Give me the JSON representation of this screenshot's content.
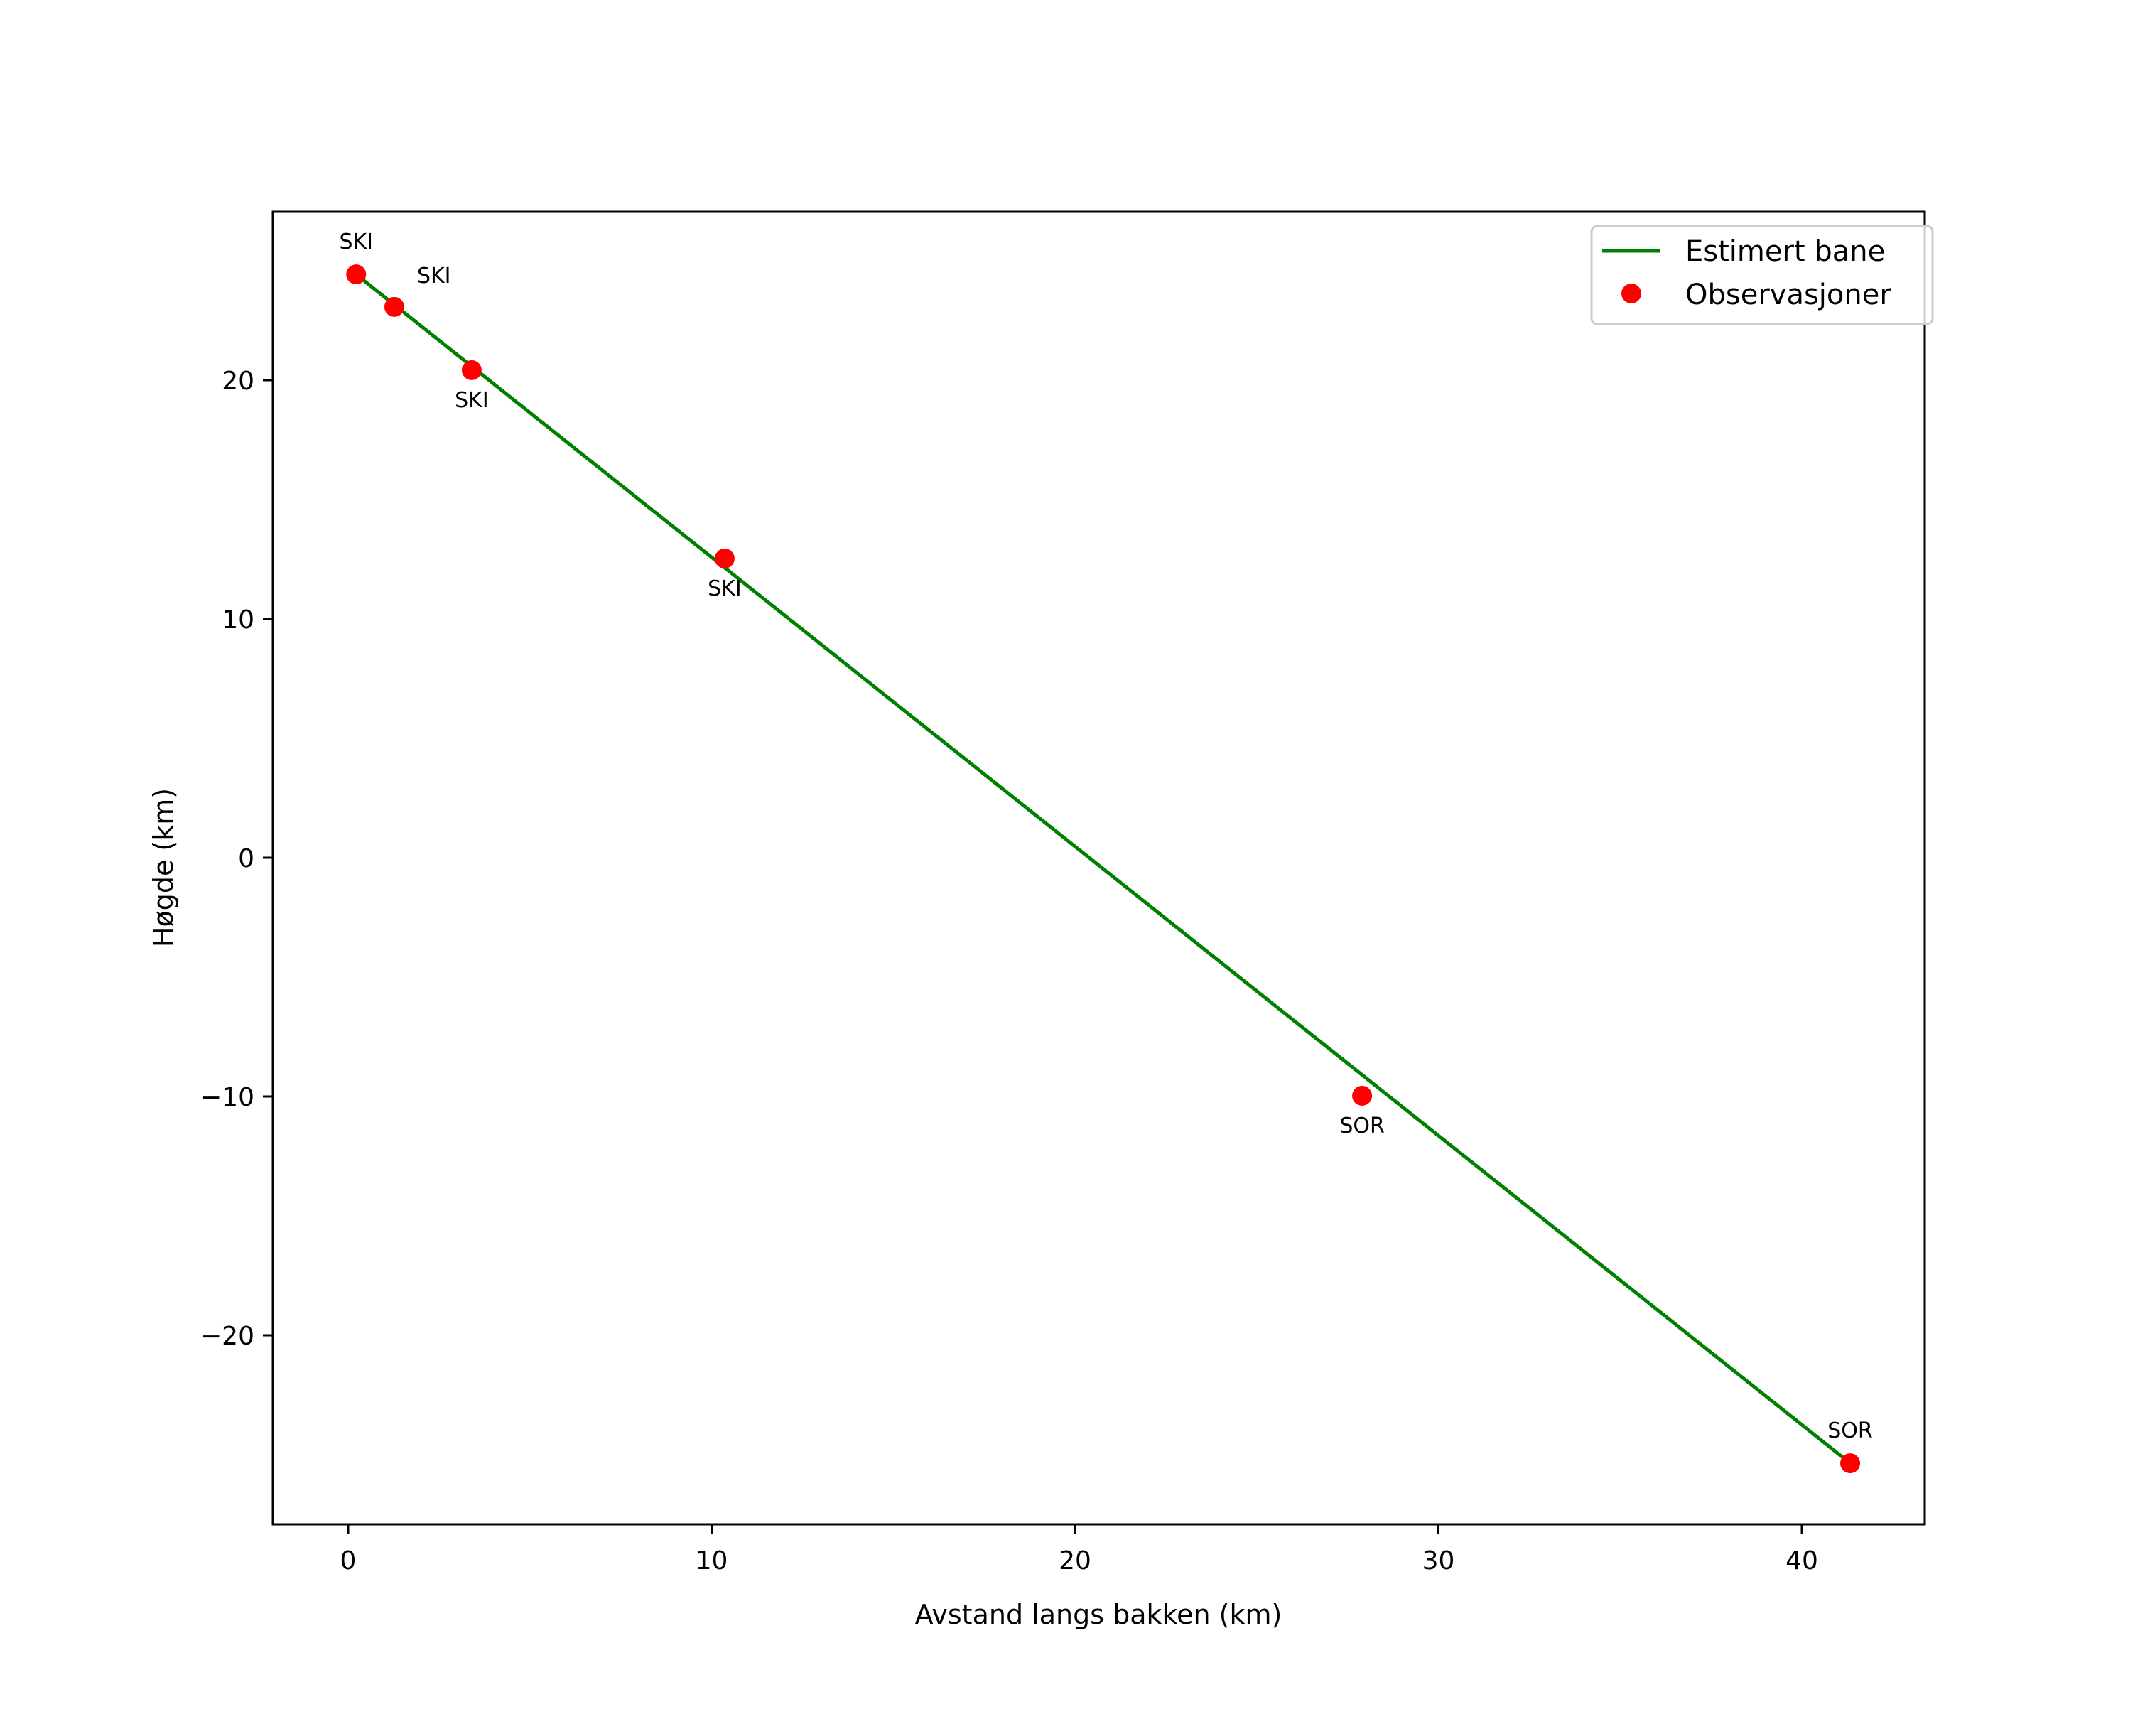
{
  "chart_data": {
    "type": "line",
    "title": "",
    "xlabel": "Avstand langs bakken (km)",
    "ylabel": "Høgde (km)",
    "xlim": [
      -2.0,
      43.4
    ],
    "ylim": [
      -27.6,
      27.1
    ],
    "xticks": [
      0,
      10,
      20,
      30,
      40
    ],
    "yticks": [
      -20,
      -10,
      0,
      10,
      20
    ],
    "xtick_labels": [
      "0",
      "10",
      "20",
      "30",
      "40"
    ],
    "ytick_labels": [
      "−20",
      "−10",
      "0",
      "10",
      "20"
    ],
    "grid": false,
    "legend_position": "upper right",
    "series": [
      {
        "name": "Estimert bane",
        "kind": "line",
        "color": "#008000",
        "x": [
          0.22,
          41.33
        ],
        "y": [
          24.43,
          -25.36
        ]
      },
      {
        "name": "Observasjoner",
        "kind": "scatter",
        "color": "#ff0000",
        "x": [
          0.22,
          1.27,
          3.4,
          10.36,
          27.9,
          41.33
        ],
        "y": [
          24.43,
          23.07,
          20.42,
          12.53,
          -9.97,
          -25.36
        ],
        "labels": [
          "SKI",
          "SKI",
          "SKI",
          "SKI",
          "SOR",
          "SOR"
        ]
      }
    ]
  },
  "legend": {
    "items": [
      {
        "label": "Estimert bane",
        "color": "#008000",
        "marker": "line"
      },
      {
        "label": "Observasjoner",
        "color": "#ff0000",
        "marker": "dot"
      }
    ]
  }
}
